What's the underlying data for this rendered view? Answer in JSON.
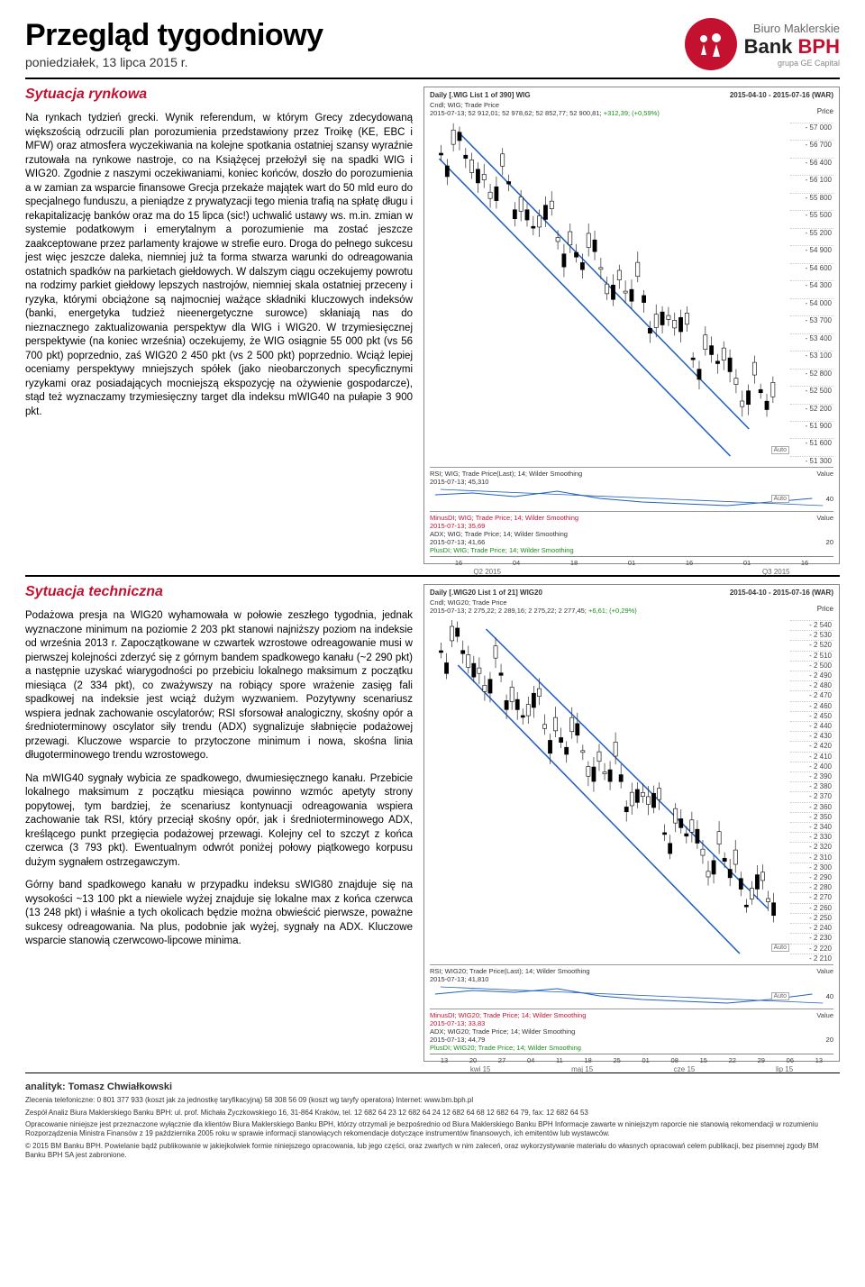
{
  "header": {
    "title": "Przegląd tygodniowy",
    "subtitle": "poniedziałek, 13 lipca 2015 r.",
    "logo_line1": "Biuro Maklerskie",
    "logo_bank": "Bank",
    "logo_bph": "BPH",
    "logo_line3": "grupa GE Capital"
  },
  "section1": {
    "title": "Sytuacja rynkowa",
    "para1": "Na rynkach tydzień grecki. Wynik referendum, w którym Grecy zdecydowaną większością odrzucili plan porozumienia przedstawiony przez Troikę (KE, EBC i MFW) oraz atmosfera wyczekiwania na kolejne spotkania ostatniej szansy wyraźnie rzutowała na rynkowe nastroje, co na Książęcej przełożył się na spadki WIG i WIG20. Zgodnie z naszymi oczekiwaniami, koniec końców, doszło do porozumienia a w zamian za wsparcie finansowe Grecja przekaże majątek wart do 50 mld euro do specjalnego funduszu, a pieniądze z prywatyzacji tego mienia trafią na spłatę długu i rekapitalizację banków oraz ma do 15 lipca (sic!) uchwalić ustawy ws. m.in. zmian w systemie podatkowym i emerytalnym a porozumienie ma zostać jeszcze zaakceptowane przez parlamenty krajowe w strefie euro. Droga do pełnego sukcesu jest więc jeszcze daleka, niemniej już ta forma stwarza warunki do odreagowania ostatnich spadków na parkietach giełdowych. W dalszym ciągu oczekujemy powrotu na rodzimy parkiet giełdowy lepszych nastrojów, niemniej skala ostatniej przeceny i ryzyka, którymi obciążone są najmocniej ważące składniki kluczowych indeksów (banki, energetyka tudzież nieenergetyczne surowce) skłaniają nas do nieznacznego zaktualizowania perspektyw dla WIG i WIG20. W trzymiesięcznej perspektywie (na koniec września) oczekujemy, że WIG osiągnie 55 000 pkt (vs 56 700 pkt) poprzednio, zaś WIG20 2 450 pkt (vs 2 500 pkt) poprzednio. Wciąż lepiej oceniamy perspektywy mniejszych spółek (jako nieobarczonych specyficznymi ryzykami oraz posiadających mocniejszą ekspozycję na ożywienie gospodarcze), stąd też wyznaczamy trzymiesięczny target dla indeksu mWIG40 na pułapie 3 900 pkt."
  },
  "section2": {
    "title": "Sytuacja techniczna",
    "para1": "Podażowa presja na WIG20 wyhamowała w połowie zeszłego tygodnia, jednak wyznaczone minimum na poziomie 2 203 pkt stanowi najniższy poziom na indeksie od września 2013 r. Zapoczątkowane w czwartek wzrostowe odreagowanie musi w pierwszej kolejności zderzyć się z górnym bandem spadkowego kanału (~2 290 pkt) a następnie uzyskać wiarygodności po przebiciu lokalnego maksimum z początku miesiąca (2 334 pkt), co zważywszy na robiący spore wrażenie zasięg fali spadkowej na indeksie jest wciąż dużym wyzwaniem. Pozytywny scenariusz wspiera jednak zachowanie oscylatorów; RSI sforsował analogiczny, skośny opór a średnioterminowy oscylator siły trendu (ADX) sygnalizuje słabnięcie podażowej przewagi. Kluczowe wsparcie to przytoczone minimum i nowa, skośna linia długoterminowego trendu wzrostowego.",
    "para2": "Na mWIG40 sygnały wybicia ze spadkowego, dwumiesięcznego kanału. Przebicie lokalnego maksimum z początku miesiąca powinno wzmóc apetyty strony popytowej, tym bardziej, że scenariusz kontynuacji odreagowania wspiera zachowanie tak RSI, który przeciął skośny opór, jak i średnioterminowego ADX, kreślącego punkt przegięcia podażowej przewagi. Kolejny cel to szczyt z końca czerwca (3 793 pkt). Ewentualnym odwrót poniżej połowy piątkowego korpusu dużym sygnałem ostrzegawczym.",
    "para3": "Górny band spadkowego kanału w przypadku indeksu sWIG80 znajduje się na wysokości ~13 100 pkt a niewiele wyżej znajduje się lokalne max z końca czerwca (13 248 pkt) i właśnie a tych okolicach będzie można obwieścić pierwsze, poważne sukcesy odreagowania. Na plus, podobnie jak wyżej, sygnały na ADX. Kluczowe wsparcie stanowią czerwcowo-lipcowe minima."
  },
  "chart1": {
    "title_left": "Daily [.WIG List 1 of 390] WIG",
    "title_right": "2015-04-10 - 2015-07-16 (WAR)",
    "sub_line": "Cndl; WIG; Trade Price",
    "date_info": "2015-07-13; 52 912,01; 52 978,62; 52 852,77; 52 900,81;",
    "change": "+312,39; (+0,59%)",
    "price_label": "Price",
    "yaxis": [
      "57 000",
      "56 700",
      "56 400",
      "56 100",
      "55 800",
      "55 500",
      "55 200",
      "54 900",
      "54 600",
      "54 300",
      "54 000",
      "53 700",
      "53 400",
      "53 100",
      "52 800",
      "52 500",
      "52 200",
      "51 900",
      "51 600",
      "51 300"
    ],
    "rsi_label": "RSI; WIG; Trade Price(Last); 14; Wilder Smoothing",
    "rsi_date": "2015-07-13; 45,310",
    "rsi_value": "Value",
    "rsi_tick": "40",
    "minus_di": "MinusDI; WIG; Trade Price; 14; Wilder Smoothing",
    "minus_di_date": "2015-07-13; 35,69",
    "adx": "ADX; WIG; Trade Price; 14; Wilder Smoothing",
    "adx_date": "2015-07-13; 41,66",
    "plus_di": "PlusDI; WIG; Trade Price; 14; Wilder Smoothing",
    "adx_value": "Value",
    "adx_tick": "20",
    "xaxis": [
      "16",
      "04",
      "18",
      "01",
      "16",
      "01",
      "16"
    ],
    "xaxis_labels": [
      "Q2 2015",
      "",
      "",
      "Q3 2015"
    ]
  },
  "chart2": {
    "title_left": "Daily [.WIG20 List 1 of 21] WIG20",
    "title_right": "2015-04-10 - 2015-07-16 (WAR)",
    "sub_line": "Cndl; WIG20; Trade Price",
    "date_info": "2015-07-13; 2 275,22; 2 289,16; 2 275,22; 2 277,45;",
    "change": "+6,61; (+0,29%)",
    "price_label": "Price",
    "yaxis": [
      "2 540",
      "2 530",
      "2 520",
      "2 510",
      "2 500",
      "2 490",
      "2 480",
      "2 470",
      "2 460",
      "2 450",
      "2 440",
      "2 430",
      "2 420",
      "2 410",
      "2 400",
      "2 390",
      "2 380",
      "2 370",
      "2 360",
      "2 350",
      "2 340",
      "2 330",
      "2 320",
      "2 310",
      "2 300",
      "2 290",
      "2 280",
      "2 270",
      "2 260",
      "2 250",
      "2 240",
      "2 230",
      "2 220",
      "2 210"
    ],
    "rsi_label": "RSI; WIG20; Trade Price(Last); 14; Wilder Smoothing",
    "rsi_date": "2015-07-13; 41,810",
    "rsi_value": "Value",
    "rsi_tick": "40",
    "minus_di": "MinusDI; WIG20; Trade Price; 14; Wilder Smoothing",
    "minus_di_date": "2015-07-13; 33,83",
    "adx": "ADX; WIG20; Trade Price; 14; Wilder Smoothing",
    "adx_date": "2015-07-13; 44,79",
    "plus_di": "PlusDI; WIG20; Trade Price; 14; Wilder Smoothing",
    "adx_value": "Value",
    "adx_tick": "20",
    "xaxis": [
      "13",
      "20",
      "27",
      "04",
      "11",
      "18",
      "25",
      "01",
      "08",
      "15",
      "22",
      "29",
      "06",
      "13"
    ],
    "xaxis_labels": [
      "kwi 15",
      "maj 15",
      "cze 15",
      "lip 15"
    ]
  },
  "footer": {
    "analyst": "analityk: Tomasz Chwiałkowski",
    "line1": "Zlecenia telefoniczne: 0 801 377 933 (koszt jak za jednostkę taryfikacyjną)  58 308 56 09 (koszt wg taryfy operatora)  Internet: www.bm.bph.pl",
    "line2": "Zespół Analiz Biura Maklerskiego Banku BPH: ul. prof. Michała Życzkowskiego 16, 31-864 Kraków,  tel. 12 682 64 23  12 682 64 24  12 682 64 68  12 682 64 79,  fax: 12 682 64 53",
    "line3": "Opracowanie niniejsze jest przeznaczone wyłącznie dla klientów Biura Maklerskiego Banku BPH, którzy otrzymali je bezpośrednio od Biura Maklerskiego Banku BPH Informacje zawarte w niniejszym raporcie nie stanowią rekomendacji w rozumieniu Rozporządzenia Ministra Finansów z 19 października 2005 roku w sprawie informacji stanowiących rekomendacje dotyczące instrumentów finansowych, ich emitentów lub wystawców.",
    "line4": "© 2015 BM Banku BPH. Powielanie bądź publikowanie w jakiejkolwiek formie niniejszego opracowania, lub jego części, oraz zwartych w nim zaleceń, oraz wykorzystywanie materiału do własnych opracowań celem publikacji, bez pisemnej zgody BM Banku BPH SA jest zabronione."
  },
  "colors": {
    "brand_red": "#c41130",
    "chart_blue": "#2060c0",
    "chart_red": "#d03030",
    "chart_green": "#1a8f1a",
    "grid": "#cccccc",
    "text": "#000000"
  }
}
